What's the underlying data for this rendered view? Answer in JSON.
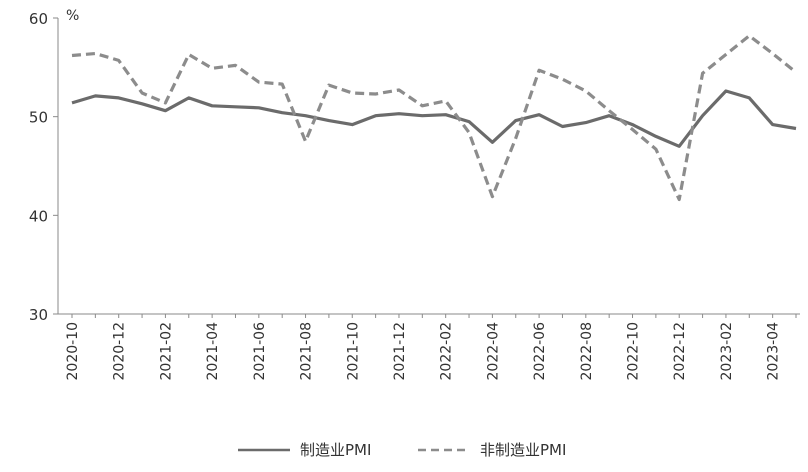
{
  "chart_data": {
    "type": "line",
    "title": "",
    "xlabel": "",
    "ylabel": "",
    "unit": "%",
    "ylim": [
      30,
      60
    ],
    "yticks": [
      30,
      40,
      50,
      60
    ],
    "grid": false,
    "legend_position": "bottom",
    "x": [
      "2020-10",
      "2020-11",
      "2020-12",
      "2021-01",
      "2021-02",
      "2021-03",
      "2021-04",
      "2021-05",
      "2021-06",
      "2021-07",
      "2021-08",
      "2021-09",
      "2021-10",
      "2021-11",
      "2021-12",
      "2022-01",
      "2022-02",
      "2022-03",
      "2022-04",
      "2022-05",
      "2022-06",
      "2022-07",
      "2022-08",
      "2022-09",
      "2022-10",
      "2022-11",
      "2022-12",
      "2023-01",
      "2023-02",
      "2023-03",
      "2023-04",
      "2023-05"
    ],
    "xtick_labels": [
      "2020-10",
      "2020-12",
      "2021-02",
      "2021-04",
      "2021-06",
      "2021-08",
      "2021-10",
      "2021-12",
      "2022-02",
      "2022-04",
      "2022-06",
      "2022-08",
      "2022-10",
      "2022-12",
      "2023-02",
      "2023-04"
    ],
    "series": [
      {
        "name": "制造业PMI",
        "style": "solid",
        "color": "#6b6b6b",
        "values": [
          51.4,
          52.1,
          51.9,
          51.3,
          50.6,
          51.9,
          51.1,
          51.0,
          50.9,
          50.4,
          50.1,
          49.6,
          49.2,
          50.1,
          50.3,
          50.1,
          50.2,
          49.5,
          47.4,
          49.6,
          50.2,
          49.0,
          49.4,
          50.1,
          49.2,
          48.0,
          47.0,
          50.1,
          52.6,
          51.9,
          49.2,
          48.8
        ]
      },
      {
        "name": "非制造业PMI",
        "style": "dashed",
        "color": "#8c8c8c",
        "values": [
          56.2,
          56.4,
          55.7,
          52.4,
          51.4,
          56.3,
          54.9,
          55.2,
          53.5,
          53.3,
          47.5,
          53.2,
          52.4,
          52.3,
          52.7,
          51.1,
          51.6,
          48.4,
          41.9,
          47.8,
          54.7,
          53.8,
          52.6,
          50.6,
          48.7,
          46.7,
          41.6,
          54.4,
          56.3,
          58.2,
          56.4,
          54.5
        ]
      }
    ]
  }
}
